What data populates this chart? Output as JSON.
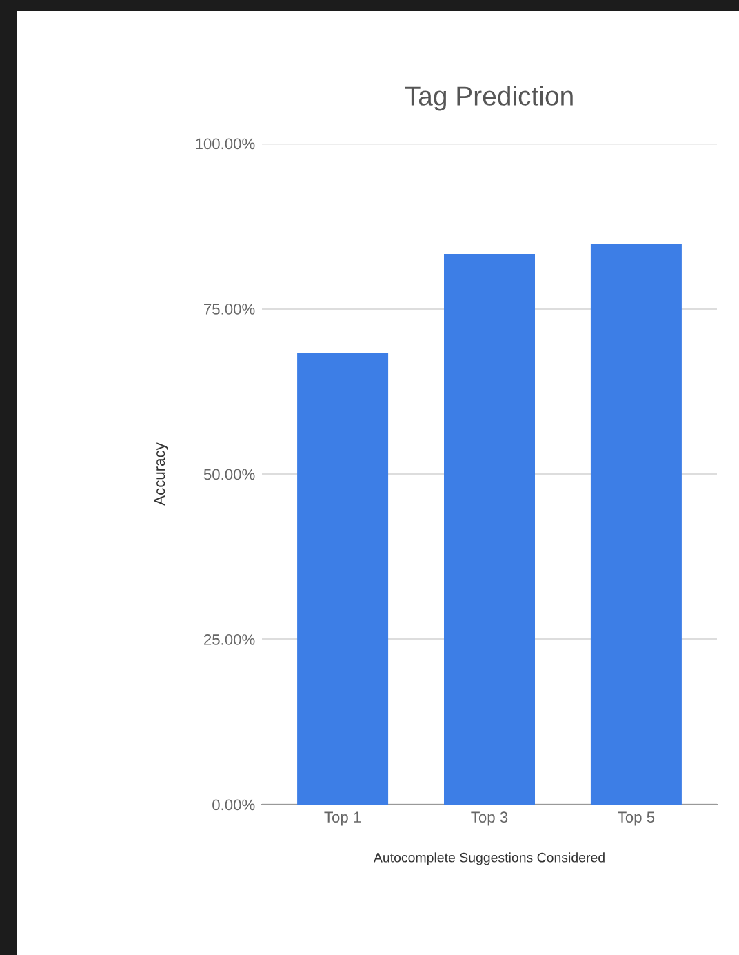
{
  "chart_data": {
    "type": "bar",
    "title": "Tag Prediction",
    "xlabel": "Autocomplete Suggestions Considered",
    "ylabel": "Accuracy",
    "categories": [
      "Top 1",
      "Top 3",
      "Top 5"
    ],
    "values": [
      68.3,
      83.3,
      84.8
    ],
    "color": "#3d7ee6",
    "ylim": [
      0,
      100
    ],
    "yticks": [
      {
        "value": 0,
        "label": "0.00%"
      },
      {
        "value": 25,
        "label": "25.00%"
      },
      {
        "value": 50,
        "label": "50.00%"
      },
      {
        "value": 75,
        "label": "75.00%"
      },
      {
        "value": 100,
        "label": "100.00%"
      }
    ],
    "grid": "y",
    "legend": false
  }
}
